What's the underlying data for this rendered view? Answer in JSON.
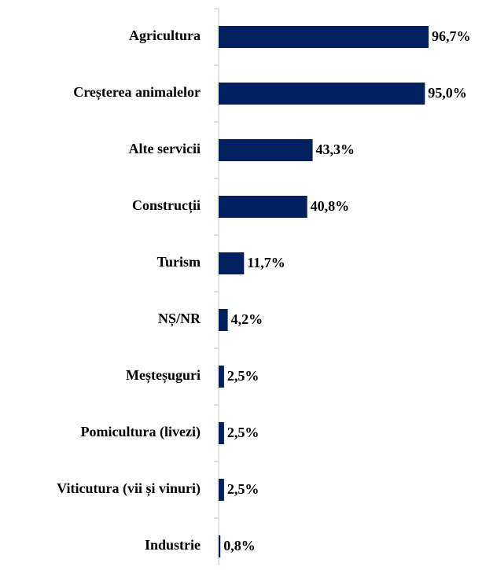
{
  "chart_data": {
    "type": "bar",
    "orientation": "horizontal",
    "color": "#002060",
    "categories": [
      "Agricultura",
      "Creșterea animalelor",
      "Alte servicii",
      "Construcții",
      "Turism",
      "NȘ/NR",
      "Meșteșuguri",
      "Pomicultura (livezi)",
      "Viticutura (vii și vinuri)",
      "Industrie"
    ],
    "values": [
      96.7,
      95.0,
      43.3,
      40.8,
      11.7,
      4.2,
      2.5,
      2.5,
      2.5,
      0.8
    ],
    "value_labels": [
      "96,7%",
      "95,0%",
      "43,3%",
      "40,8%",
      "11,7%",
      "4,2%",
      "2,5%",
      "2,5%",
      "2,5%",
      "0,8%"
    ]
  }
}
